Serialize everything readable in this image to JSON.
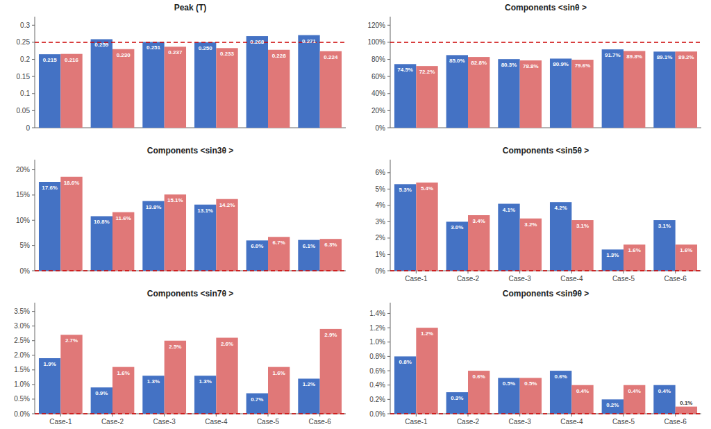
{
  "chart_data": [
    {
      "type": "bar",
      "title": "Peak (T)",
      "categories": [
        null,
        null,
        null,
        null,
        null,
        null
      ],
      "series": [
        {
          "color": "#4472C4",
          "values": [
            0.215,
            0.259,
            0.251,
            0.25,
            0.268,
            0.271
          ],
          "value_labels": [
            "0.215",
            "0.259",
            "0.251",
            "0.250",
            "0.268",
            "0.271"
          ]
        },
        {
          "color": "#E07878",
          "values": [
            0.216,
            0.23,
            0.237,
            0.233,
            0.228,
            0.224
          ],
          "value_labels": [
            "0.216",
            "0.230",
            "0.237",
            "0.233",
            "0.228",
            "0.224"
          ]
        }
      ],
      "ylim": [
        0,
        0.325
      ],
      "yticks": [
        0,
        0.05,
        0.1,
        0.15,
        0.2,
        0.25,
        0.3
      ],
      "reference_line": {
        "value": 0.25,
        "color": "#CC0000",
        "line_style": "dashed"
      },
      "grid": false,
      "data_labels": true
    },
    {
      "type": "bar",
      "title": "Components <sinθ >",
      "categories": [
        null,
        null,
        null,
        null,
        null,
        null
      ],
      "series": [
        {
          "color": "#4472C4",
          "values": [
            74.5,
            85.0,
            80.3,
            80.9,
            91.7,
            89.1
          ],
          "value_labels": [
            "74.5%",
            "85.0%",
            "80.3%",
            "80.9%",
            "91.7%",
            "89.1%"
          ]
        },
        {
          "color": "#E07878",
          "values": [
            72.2,
            82.8,
            78.8,
            79.6,
            89.8,
            89.2
          ],
          "value_labels": [
            "72.2%",
            "82.8%",
            "78.8%",
            "79.6%",
            "89.8%",
            "89.2%"
          ]
        }
      ],
      "ylim": [
        0,
        130
      ],
      "yticks": [
        {
          "value": 0,
          "label": "0%"
        },
        {
          "value": 20,
          "label": "20%"
        },
        {
          "value": 40,
          "label": "40%"
        },
        {
          "value": 60,
          "label": "60%"
        },
        {
          "value": 80,
          "label": "80%"
        },
        {
          "value": 100,
          "label": "100%"
        },
        {
          "value": 120,
          "label": "120%"
        }
      ],
      "reference_line": {
        "value": 100,
        "color": "#CC0000",
        "line_style": "dashed"
      },
      "grid": false,
      "data_labels": true
    },
    {
      "type": "bar",
      "title": "Components <sin3θ >",
      "categories": [
        null,
        null,
        null,
        null,
        null,
        null
      ],
      "series": [
        {
          "color": "#4472C4",
          "values": [
            17.6,
            10.8,
            13.8,
            13.1,
            6.0,
            6.1
          ],
          "value_labels": [
            "17.6%",
            "10.8%",
            "13.8%",
            "13.1%",
            "6.0%",
            "6.1%"
          ]
        },
        {
          "color": "#E07878",
          "values": [
            18.6,
            11.6,
            15.1,
            14.2,
            6.7,
            6.3
          ],
          "value_labels": [
            "18.6%",
            "11.6%",
            "15.1%",
            "14.2%",
            "6.7%",
            "6.3%"
          ]
        }
      ],
      "ylim": [
        0,
        22
      ],
      "yticks": [
        {
          "value": 0,
          "label": "0%"
        },
        {
          "value": 5,
          "label": "5%"
        },
        {
          "value": 10,
          "label": "10%"
        },
        {
          "value": 15,
          "label": "15%"
        },
        {
          "value": 20,
          "label": "20%"
        }
      ],
      "reference_line": {
        "value": 0,
        "color": "#CC0000",
        "line_style": "dashed"
      },
      "grid": false,
      "data_labels": true
    },
    {
      "type": "bar",
      "title": "Components <sin5θ >",
      "categories": [
        "Case-1",
        "Case-2",
        "Case-3",
        "Case-4",
        "Case-5",
        "Case-6"
      ],
      "series": [
        {
          "color": "#4472C4",
          "values": [
            5.3,
            3.0,
            4.1,
            4.2,
            1.3,
            3.1
          ],
          "value_labels": [
            "5.3%",
            "3.0%",
            "4.1%",
            "4.2%",
            "1.3%",
            "3.1%"
          ]
        },
        {
          "color": "#E07878",
          "values": [
            5.4,
            3.4,
            3.2,
            3.1,
            1.6,
            1.6
          ],
          "value_labels": [
            "5.4%",
            "3.4%",
            "3.2%",
            "3.1%",
            "1.6%",
            "1.6%"
          ]
        }
      ],
      "ylim": [
        0,
        6.8
      ],
      "yticks": [
        {
          "value": 0,
          "label": "0%"
        },
        {
          "value": 1,
          "label": "1%"
        },
        {
          "value": 2,
          "label": "2%"
        },
        {
          "value": 3,
          "label": "3%"
        },
        {
          "value": 4,
          "label": "4%"
        },
        {
          "value": 5,
          "label": "5%"
        },
        {
          "value": 6,
          "label": "6%"
        }
      ],
      "reference_line": {
        "value": 0,
        "color": "#CC0000",
        "line_style": "dashed"
      },
      "grid": false,
      "data_labels": true
    },
    {
      "type": "bar",
      "title": "Components <sin7θ >",
      "categories": [
        "Case-1",
        "Case-2",
        "Case-3",
        "Case-4",
        "Case-5",
        "Case-6"
      ],
      "series": [
        {
          "color": "#4472C4",
          "values": [
            1.9,
            0.9,
            1.3,
            1.3,
            0.7,
            1.2
          ],
          "value_labels": [
            "1.9%",
            "0.9%",
            "1.3%",
            "1.3%",
            "0.7%",
            "1.2%"
          ]
        },
        {
          "color": "#E07878",
          "values": [
            2.7,
            1.6,
            2.5,
            2.6,
            1.6,
            2.9
          ],
          "value_labels": [
            "2.7%",
            "1.6%",
            "2.5%",
            "2.6%",
            "1.6%",
            "2.9%"
          ]
        }
      ],
      "ylim": [
        0,
        3.8
      ],
      "yticks": [
        {
          "value": 0.0,
          "label": "0.0%"
        },
        {
          "value": 0.5,
          "label": "0.5%"
        },
        {
          "value": 1.0,
          "label": "1.0%"
        },
        {
          "value": 1.5,
          "label": "1.5%"
        },
        {
          "value": 2.0,
          "label": "2.0%"
        },
        {
          "value": 2.5,
          "label": "2.5%"
        },
        {
          "value": 3.0,
          "label": "3.0%"
        },
        {
          "value": 3.5,
          "label": "3.5%"
        }
      ],
      "reference_line": {
        "value": 0,
        "color": "#CC0000",
        "line_style": "dashed"
      },
      "grid": false,
      "data_labels": true
    },
    {
      "type": "bar",
      "title": "Components <sin9θ >",
      "categories": [
        "Case-1",
        "Case-2",
        "Case-3",
        "Case-4",
        "Case-5",
        "Case-6"
      ],
      "series": [
        {
          "color": "#4472C4",
          "values": [
            0.8,
            0.3,
            0.5,
            0.6,
            0.2,
            0.4
          ],
          "value_labels": [
            "0.8%",
            "0.3%",
            "0.5%",
            "0.6%",
            "0.2%",
            "0.4%"
          ]
        },
        {
          "color": "#E07878",
          "values": [
            1.2,
            0.6,
            0.5,
            0.4,
            0.4,
            0.1
          ],
          "value_labels": [
            "1.2%",
            "0.6%",
            "0.5%",
            "0.4%",
            "0.4%",
            "0.1%"
          ]
        }
      ],
      "ylim": [
        0,
        1.55
      ],
      "yticks": [
        {
          "value": 0.0,
          "label": "0.0%"
        },
        {
          "value": 0.2,
          "label": "0.2%"
        },
        {
          "value": 0.4,
          "label": "0.4%"
        },
        {
          "value": 0.6,
          "label": "0.6%"
        },
        {
          "value": 0.8,
          "label": "0.8%"
        },
        {
          "value": 1.0,
          "label": "1.0%"
        },
        {
          "value": 1.2,
          "label": "1.2%"
        },
        {
          "value": 1.4,
          "label": "1.4%"
        }
      ],
      "reference_line": {
        "value": 0,
        "color": "#CC0000",
        "line_style": "dashed"
      },
      "grid": false,
      "data_labels": true
    }
  ]
}
